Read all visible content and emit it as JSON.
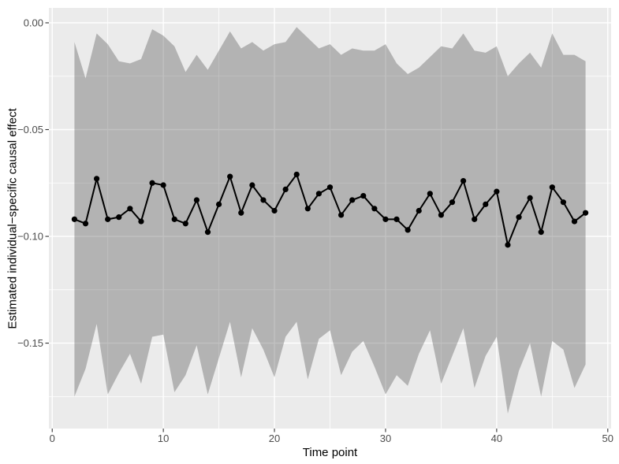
{
  "figure": {
    "kind": "ggplot-style line chart with confidence ribbon",
    "background_color": "#FFFFFF"
  },
  "chart_data": {
    "type": "line",
    "title": "",
    "xlabel": "Time point",
    "ylabel": "Estimated individual−specific causal effect",
    "legend": "none",
    "grid": "on",
    "xlim": [
      -0.3,
      50.3
    ],
    "ylim": [
      -0.19,
      0.007
    ],
    "x_major": {
      "values": [
        0,
        10,
        20,
        30,
        40,
        50
      ],
      "labels": [
        "0",
        "10",
        "20",
        "30",
        "40",
        "50"
      ]
    },
    "x_minor": [
      5,
      15,
      25,
      35,
      45
    ],
    "y_major": {
      "values": [
        0,
        -0.05,
        -0.1,
        -0.15
      ],
      "labels": [
        "0.00",
        "−0.05",
        "−0.10",
        "−0.15"
      ]
    },
    "y_minor": [
      -0.025,
      -0.075,
      -0.125,
      -0.175
    ],
    "x": [
      2,
      3,
      4,
      5,
      6,
      7,
      8,
      9,
      10,
      11,
      12,
      13,
      14,
      15,
      16,
      17,
      18,
      19,
      20,
      21,
      22,
      23,
      24,
      25,
      26,
      27,
      28,
      29,
      30,
      31,
      32,
      33,
      34,
      35,
      36,
      37,
      38,
      39,
      40,
      41,
      42,
      43,
      44,
      45,
      46,
      47,
      48
    ],
    "series": [
      {
        "name": "estimate",
        "values": [
          -0.092,
          -0.094,
          -0.073,
          -0.092,
          -0.091,
          -0.087,
          -0.093,
          -0.075,
          -0.076,
          -0.092,
          -0.094,
          -0.083,
          -0.098,
          -0.085,
          -0.072,
          -0.089,
          -0.076,
          -0.083,
          -0.088,
          -0.078,
          -0.071,
          -0.087,
          -0.08,
          -0.077,
          -0.09,
          -0.083,
          -0.081,
          -0.087,
          -0.092,
          -0.092,
          -0.097,
          -0.088,
          -0.08,
          -0.09,
          -0.084,
          -0.074,
          -0.092,
          -0.085,
          -0.079,
          -0.104,
          -0.091,
          -0.082,
          -0.098,
          -0.077,
          -0.084,
          -0.093,
          -0.089
        ]
      },
      {
        "name": "ci_upper",
        "values": [
          -0.009,
          -0.026,
          -0.005,
          -0.01,
          -0.018,
          -0.019,
          -0.017,
          -0.003,
          -0.006,
          -0.011,
          -0.023,
          -0.015,
          -0.022,
          -0.013,
          -0.004,
          -0.012,
          -0.009,
          -0.013,
          -0.01,
          -0.009,
          -0.002,
          -0.007,
          -0.012,
          -0.01,
          -0.015,
          -0.012,
          -0.013,
          -0.013,
          -0.01,
          -0.019,
          -0.024,
          -0.021,
          -0.016,
          -0.011,
          -0.012,
          -0.005,
          -0.013,
          -0.014,
          -0.011,
          -0.025,
          -0.019,
          -0.014,
          -0.021,
          -0.005,
          -0.015,
          -0.015,
          -0.018
        ]
      },
      {
        "name": "ci_lower",
        "values": [
          -0.175,
          -0.162,
          -0.141,
          -0.174,
          -0.164,
          -0.155,
          -0.169,
          -0.147,
          -0.146,
          -0.173,
          -0.165,
          -0.151,
          -0.174,
          -0.157,
          -0.14,
          -0.166,
          -0.143,
          -0.153,
          -0.166,
          -0.147,
          -0.14,
          -0.167,
          -0.148,
          -0.144,
          -0.165,
          -0.154,
          -0.149,
          -0.161,
          -0.174,
          -0.165,
          -0.17,
          -0.155,
          -0.144,
          -0.169,
          -0.156,
          -0.143,
          -0.171,
          -0.156,
          -0.147,
          -0.183,
          -0.163,
          -0.15,
          -0.175,
          -0.149,
          -0.153,
          -0.171,
          -0.16
        ]
      }
    ],
    "style": {
      "panel_bg": "#EBEBEB",
      "grid_color": "#FFFFFF",
      "ribbon_color": "#333333",
      "ribbon_opacity": 0.3,
      "line_color": "#000000",
      "point_color": "#000000",
      "tick_mark_color": "#333333",
      "tick_label_color": "#4D4D4D",
      "axis_title_color": "#000000"
    }
  }
}
